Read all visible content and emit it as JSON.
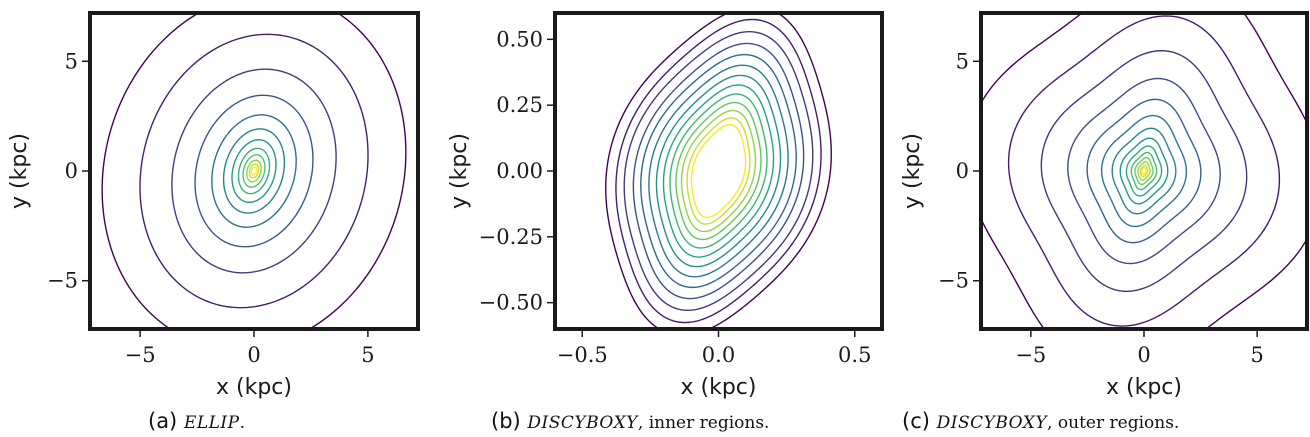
{
  "colors": {
    "colormap": [
      "#440154",
      "#46327e",
      "#365c8d",
      "#277f8e",
      "#1fa187",
      "#4ac16d",
      "#a0da39",
      "#fde725"
    ],
    "frame": "#1a1a1a"
  },
  "chart_data": [
    {
      "type": "contour",
      "caption": {
        "tag": "(a)",
        "model": "ELLIP",
        "rest": "."
      },
      "xlabel": "x (kpc)",
      "ylabel": "y (kpc)",
      "xlim": [
        -7.2,
        7.2
      ],
      "ylim": [
        -7.2,
        7.2
      ],
      "xticks": [
        -5,
        0,
        5
      ],
      "xtick_labels": [
        "−5",
        "0",
        "5"
      ],
      "yticks": [
        -5,
        0,
        5
      ],
      "ytick_labels": [
        "−5",
        "0",
        "5"
      ],
      "contours": {
        "center": [
          0,
          0
        ],
        "semi_major": [
          0.18,
          0.32,
          0.5,
          0.75,
          1.05,
          1.45,
          1.95,
          2.6,
          3.5,
          4.7,
          6.3,
          8.2
        ],
        "axis_ratio": [
          0.6,
          0.6,
          0.6,
          0.61,
          0.62,
          0.64,
          0.66,
          0.69,
          0.72,
          0.75,
          0.78,
          0.8
        ],
        "position_angle_deg": 14,
        "boxiness": 0
      }
    },
    {
      "type": "contour",
      "caption": {
        "tag": "(b)",
        "model": "DISCYBOXY",
        "rest": ", inner regions."
      },
      "xlabel": "x (kpc)",
      "ylabel": "y (kpc)",
      "xlim": [
        -0.6,
        0.6
      ],
      "ylim": [
        -0.6,
        0.6
      ],
      "xticks": [
        -0.5,
        0.0,
        0.5
      ],
      "xtick_labels": [
        "−0.5",
        "0.0",
        "0.5"
      ],
      "yticks": [
        -0.5,
        -0.25,
        0.0,
        0.25,
        0.5
      ],
      "ytick_labels": [
        "−0.50",
        "−0.25",
        "0.00",
        "0.25",
        "0.50"
      ],
      "contours": {
        "center": [
          0,
          0
        ],
        "semi_major": [
          0.175,
          0.2,
          0.228,
          0.258,
          0.29,
          0.324,
          0.36,
          0.398,
          0.438,
          0.48,
          0.524,
          0.57,
          0.618
        ],
        "axis_ratio": [
          0.52,
          0.53,
          0.55,
          0.56,
          0.57,
          0.58,
          0.59,
          0.6,
          0.61,
          0.61,
          0.62,
          0.62,
          0.63
        ],
        "position_angle_deg": 16,
        "boxiness": 0.04
      }
    },
    {
      "type": "contour",
      "caption": {
        "tag": "(c)",
        "model": "DISCYBOXY",
        "rest": ", outer regions."
      },
      "xlabel": "x (kpc)",
      "ylabel": "y (kpc)",
      "xlim": [
        -7.2,
        7.2
      ],
      "ylim": [
        -7.2,
        7.2
      ],
      "xticks": [
        -5,
        0,
        5
      ],
      "xtick_labels": [
        "−5",
        "0",
        "5"
      ],
      "yticks": [
        -5,
        0,
        5
      ],
      "ytick_labels": [
        "−5",
        "0",
        "5"
      ],
      "contours": {
        "center": [
          0,
          0
        ],
        "semi_major": [
          0.15,
          0.25,
          0.4,
          0.58,
          0.8,
          1.08,
          1.42,
          1.85,
          2.4,
          3.1,
          4.0,
          5.2,
          6.7,
          8.6
        ],
        "axis_ratio": [
          0.62,
          0.62,
          0.63,
          0.64,
          0.65,
          0.67,
          0.69,
          0.71,
          0.73,
          0.76,
          0.79,
          0.82,
          0.84,
          0.86
        ],
        "position_angle_deg": 12,
        "boxiness": 0.07
      }
    }
  ]
}
